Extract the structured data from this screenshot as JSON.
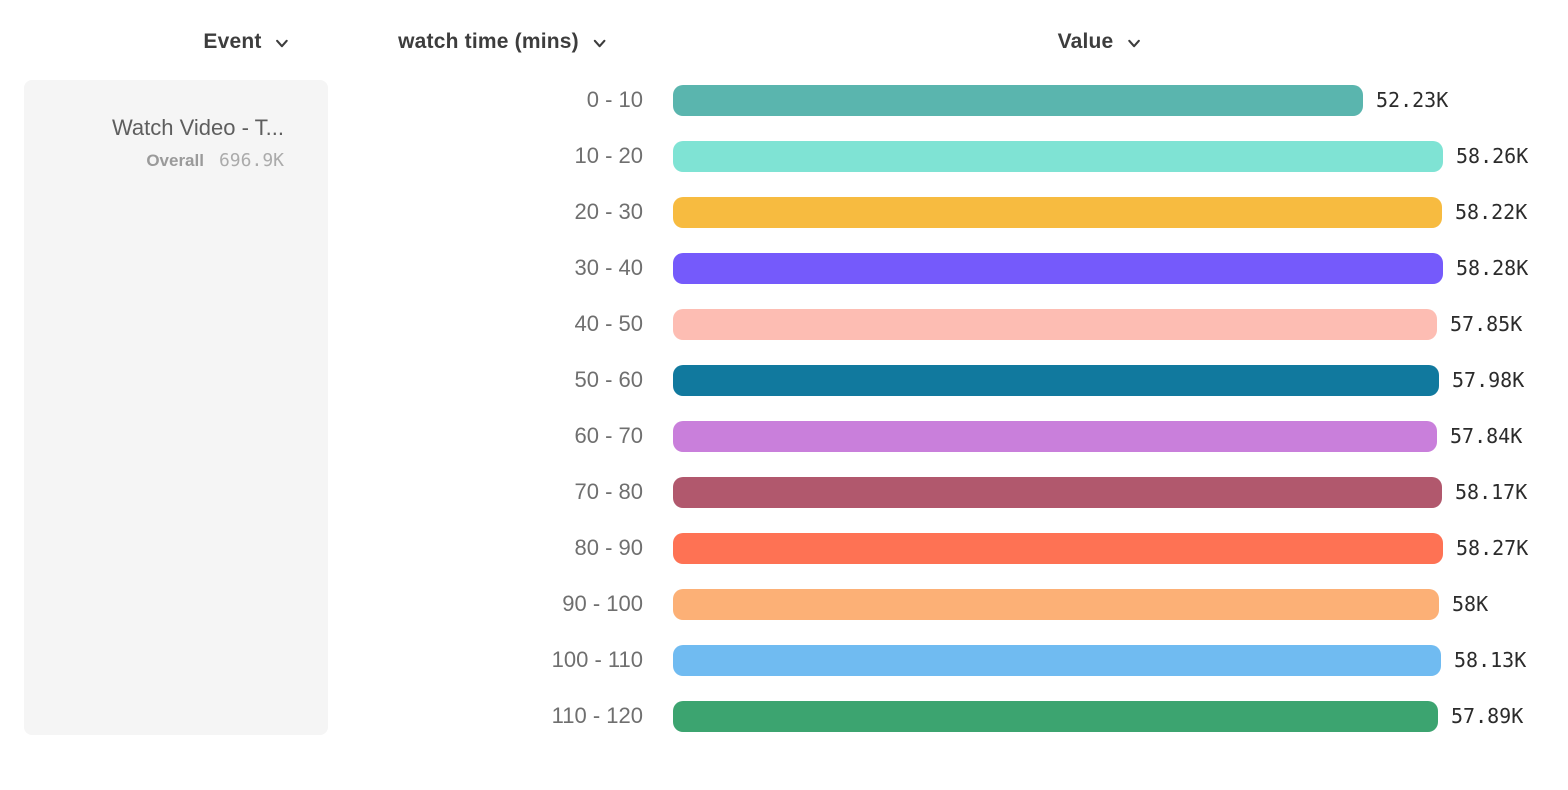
{
  "header": {
    "columns": [
      {
        "id": "event",
        "label": "Event",
        "icon": "chevron-down-icon"
      },
      {
        "id": "bucket",
        "label": "watch time (mins)",
        "icon": "chevron-down-icon"
      },
      {
        "id": "value",
        "label": "Value",
        "icon": "chevron-down-icon"
      }
    ]
  },
  "event_card": {
    "title": "Watch Video - T...",
    "overall_label": "Overall",
    "overall_value": "696.9K"
  },
  "chart_data": {
    "type": "bar",
    "orientation": "horizontal",
    "title": "",
    "xlabel": "Value",
    "ylabel": "watch time (mins)",
    "xlim": [
      0,
      58280
    ],
    "grid": false,
    "legend": "none",
    "series_name": "Watch Video - T...",
    "overall_total": "696.9K",
    "categories": [
      "0 - 10",
      "10 - 20",
      "20 - 30",
      "30 - 40",
      "40 - 50",
      "50 - 60",
      "60 - 70",
      "70 - 80",
      "80 - 90",
      "90 - 100",
      "100 - 110",
      "110 - 120"
    ],
    "values": [
      52230,
      58260,
      58220,
      58280,
      57850,
      57980,
      57840,
      58170,
      58270,
      58000,
      58130,
      57890
    ],
    "value_labels": [
      "52.23K",
      "58.26K",
      "58.22K",
      "58.28K",
      "57.85K",
      "57.98K",
      "57.84K",
      "58.17K",
      "58.27K",
      "58K",
      "58.13K",
      "57.89K"
    ],
    "colors": [
      "#5ab5ae",
      "#7fe3d4",
      "#f7bb40",
      "#755afb",
      "#fdbdb3",
      "#11799e",
      "#c97fdb",
      "#b1586d",
      "#fe7254",
      "#fcb076",
      "#70bbf1",
      "#3ca470"
    ]
  },
  "theme": {
    "background": "#ffffff",
    "card_background": "#f5f5f5",
    "header_text": "#3d3d3d",
    "category_text": "#6f6f6f",
    "value_text": "#2b2b2b",
    "title_text": "#5e5e5e",
    "overall_label_text": "#9a9a9a",
    "overall_value_text": "#ababab"
  }
}
